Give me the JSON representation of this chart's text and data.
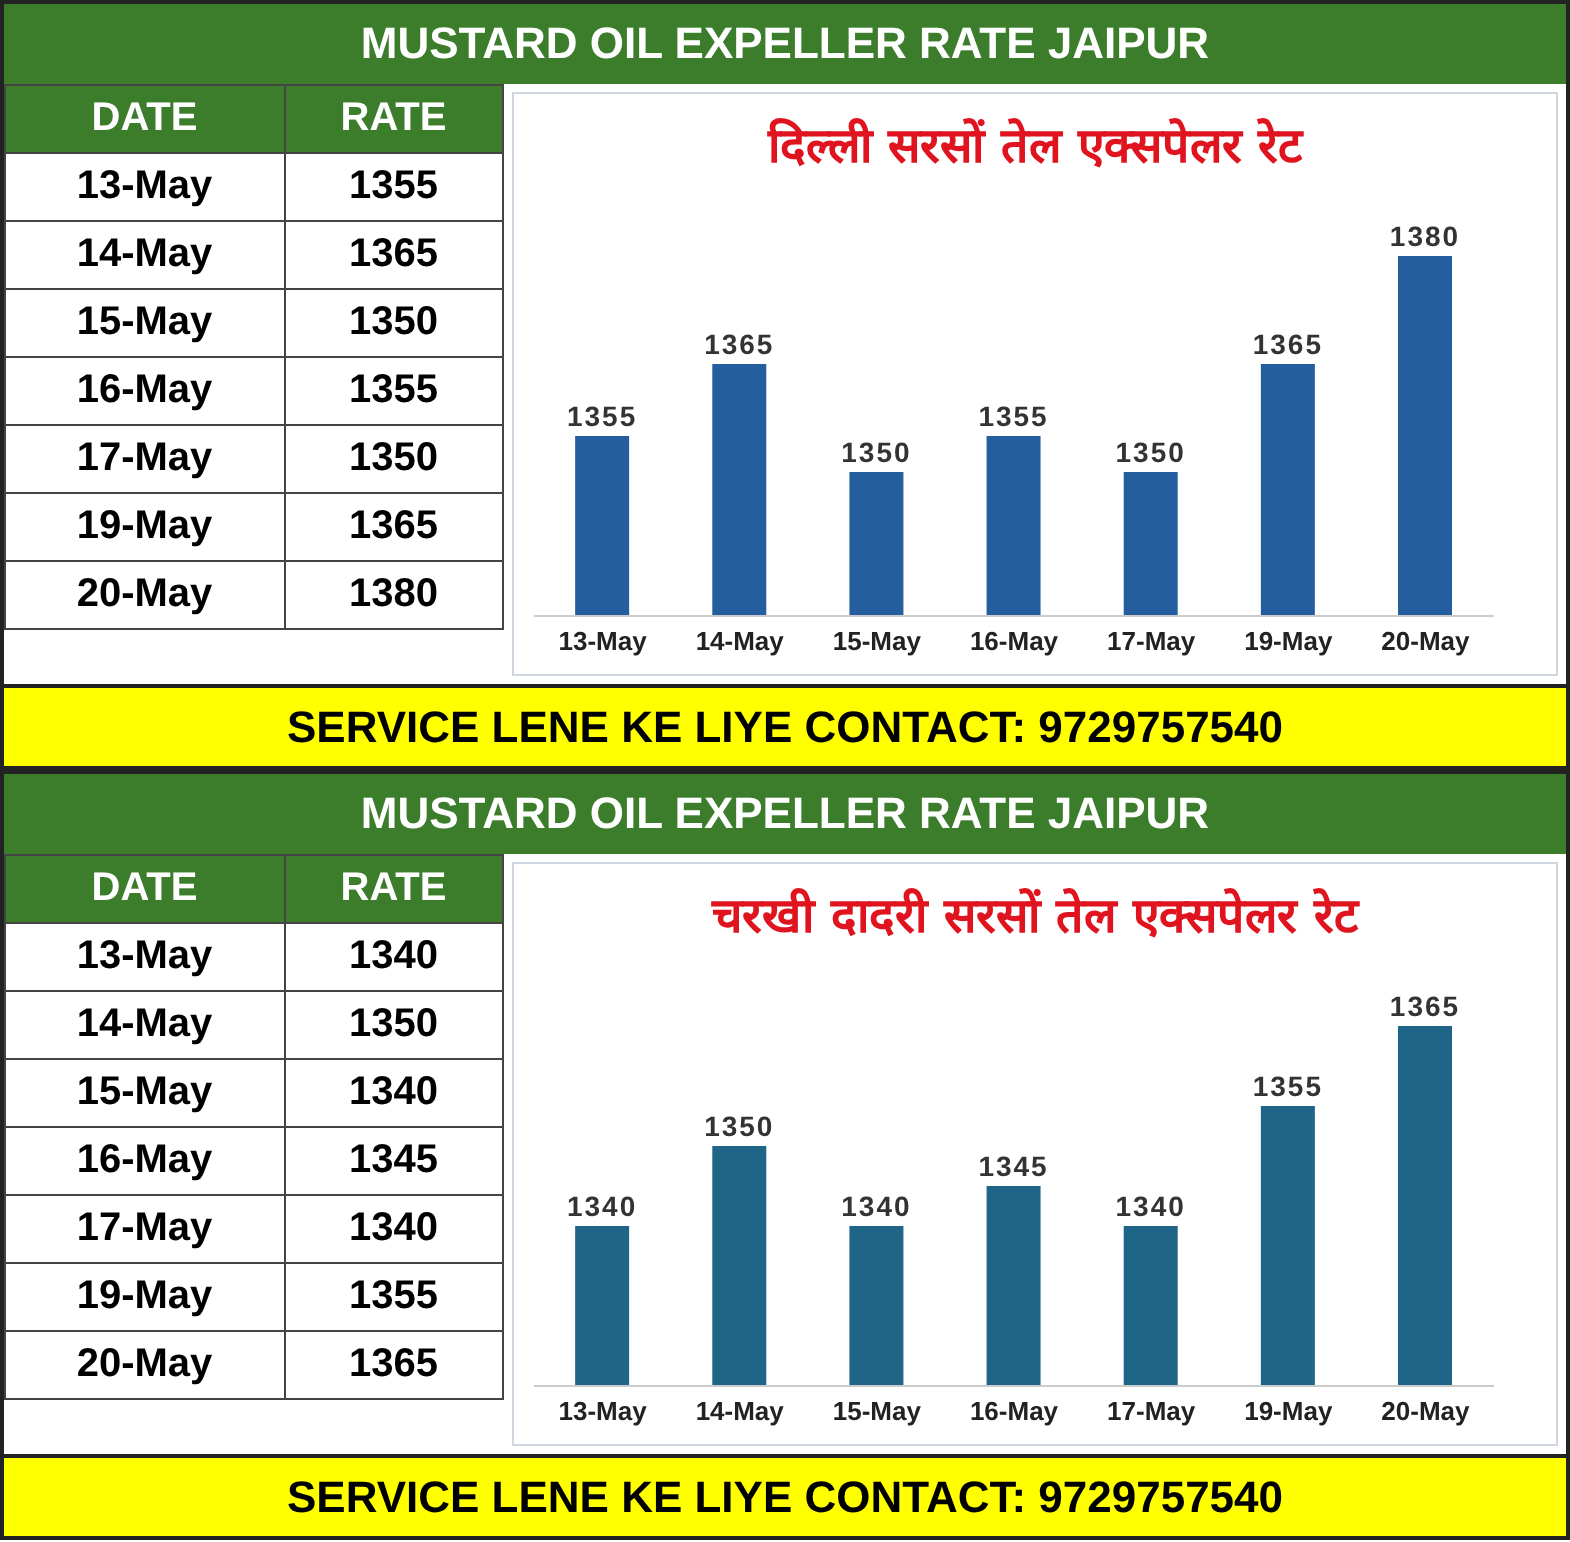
{
  "chart_data": [
    {
      "type": "other",
      "subtitle": "MUSTARD OIL EXPELLER RATE JAIPUR",
      "xlabel": "DATE",
      "ylabel": "RATE",
      "categories": [
        "13-May",
        "14-May",
        "15-May",
        "16-May",
        "17-May",
        "19-May",
        "20-May"
      ],
      "values": [
        1355,
        1365,
        1350,
        1355,
        1350,
        1365,
        1380
      ],
      "data_labels": true
    },
    {
      "type": "bar",
      "title": "दिल्ली सरसों तेल एक्सपेलर रेट",
      "annotations": [
        "SERVICE LENE KE LIYE CONTACT: 9729757540"
      ],
      "categories": [
        "13-May",
        "14-May",
        "15-May",
        "16-May",
        "17-May",
        "19-May",
        "20-May"
      ],
      "values": [
        1355,
        1365,
        1350,
        1355,
        1350,
        1365,
        1380
      ],
      "color": "#255e9f",
      "ylim": [
        1330,
        1380
      ],
      "data_labels": true
    },
    {
      "type": "other",
      "subtitle": "MUSTARD OIL EXPELLER RATE JAIPUR",
      "xlabel": "DATE",
      "ylabel": "RATE",
      "categories": [
        "13-May",
        "14-May",
        "15-May",
        "16-May",
        "17-May",
        "19-May",
        "20-May"
      ],
      "values": [
        1340,
        1350,
        1340,
        1345,
        1340,
        1355,
        1365
      ],
      "data_labels": true
    },
    {
      "type": "bar",
      "title": "चरखी दादरी सरसों तेल एक्सपेलर रेट",
      "annotations": [
        "SERVICE LENE KE LIYE CONTACT: 9729757540"
      ],
      "categories": [
        "13-May",
        "14-May",
        "15-May",
        "16-May",
        "17-May",
        "19-May",
        "20-May"
      ],
      "values": [
        1340,
        1350,
        1340,
        1345,
        1340,
        1355,
        1365
      ],
      "color": "#1f6587",
      "ylim": [
        1320,
        1365
      ],
      "data_labels": true
    }
  ]
}
